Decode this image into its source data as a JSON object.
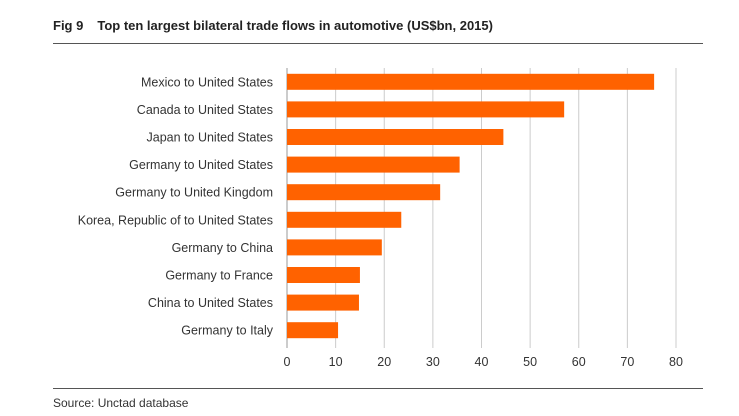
{
  "figure": {
    "label": "Fig 9",
    "title": "Top ten largest bilateral trade flows in automotive (US$bn, 2015)",
    "source": "Source: Unctad database"
  },
  "chart_data": {
    "type": "bar",
    "orientation": "horizontal",
    "categories": [
      "Mexico to United States",
      "Canada to United States",
      "Japan to United States",
      "Germany to United States",
      "Germany to United Kingdom",
      "Korea, Republic of to United States",
      "Germany to China",
      "Germany to France",
      "China to United States",
      "Germany to Italy"
    ],
    "values": [
      75.5,
      57,
      44.5,
      35.5,
      31.5,
      23.5,
      19.5,
      15,
      14.8,
      10.5
    ],
    "title": "Top ten largest bilateral trade flows in automotive (US$bn, 2015)",
    "xlabel": "",
    "ylabel": "",
    "xlim": [
      0,
      80
    ],
    "xticks": [
      0,
      10,
      20,
      30,
      40,
      50,
      60,
      70,
      80
    ],
    "grid": "vertical",
    "legend": "none",
    "bar_color": "#ff6200",
    "grid_color": "#cccccc"
  }
}
